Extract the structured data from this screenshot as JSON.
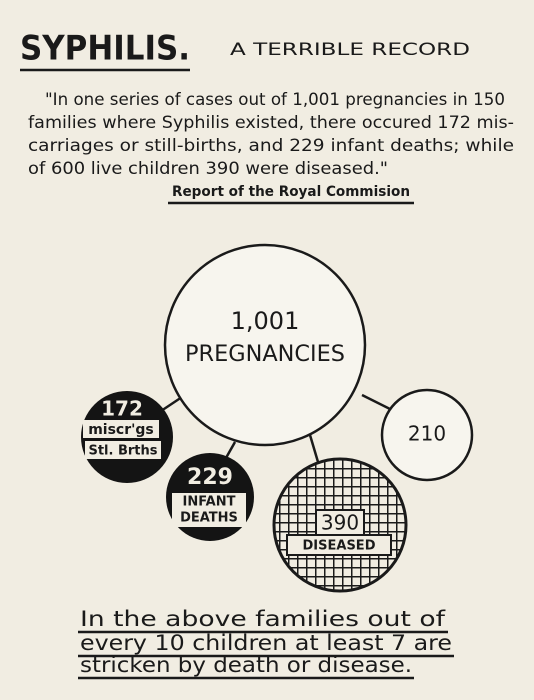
{
  "header": {
    "title": "SYPHILIS.",
    "subtitle": "A TERRIBLE RECORD"
  },
  "quote": {
    "lines": [
      "\"In one series of cases out of 1,001 pregnancies in 150",
      "families where Syphilis existed, there occured 172 mis-",
      "carriages or still-births, and 229 infant deaths; while",
      "of 600 live children 390 were diseased.\""
    ],
    "source": "Report of the Royal Commision"
  },
  "nodes": [
    {
      "value": "1,001",
      "label_lines": [
        "PREGNANCIES"
      ]
    },
    {
      "value": "172",
      "label_lines": [
        "miscr'gs",
        "Stl. Brths"
      ]
    },
    {
      "value": "229",
      "label_lines": [
        "INFANT",
        "DEATHS"
      ]
    },
    {
      "value": "390",
      "label_lines": [
        "DISEASED"
      ]
    },
    {
      "value": "210",
      "label_lines": []
    }
  ],
  "footer": {
    "lines": [
      "In the above families out of",
      "every 10 children at least 7 are",
      "stricken by death or disease."
    ]
  }
}
